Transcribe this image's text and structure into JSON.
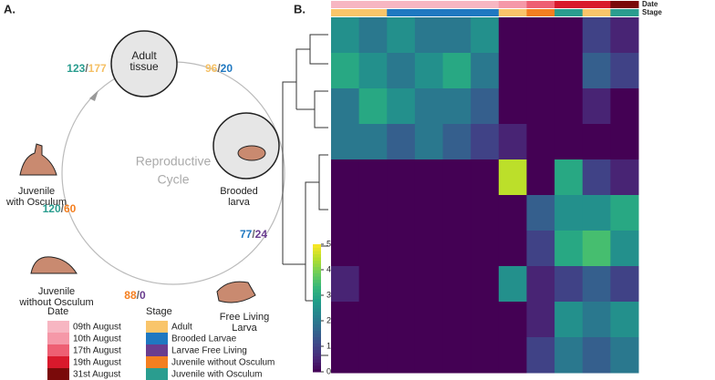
{
  "diagram": {
    "panel_a": "A.",
    "panel_b": "B.",
    "center_label": [
      "Reproductive",
      "Cycle"
    ],
    "stages": [
      {
        "label": [
          "Adult",
          "tissue"
        ]
      },
      {
        "label": [
          "Brooded",
          "larva"
        ]
      },
      {
        "label": [
          "Free Living",
          "Larva"
        ]
      },
      {
        "label": [
          "Juvenile",
          "without Osculum"
        ]
      },
      {
        "label": [
          "Juvenile",
          "with Osculum"
        ]
      }
    ],
    "counts": [
      {
        "a": "123",
        "a_color": "#2a9d8f",
        "b": "177",
        "b_color": "#f5c065"
      },
      {
        "a": "96",
        "a_color": "#f5c065",
        "b": "20",
        "b_color": "#1f78c1"
      },
      {
        "a": "77",
        "a_color": "#1f78c1",
        "b": "24",
        "b_color": "#6a3d8f"
      },
      {
        "a": "88",
        "a_color": "#f47f20",
        "b": "0",
        "b_color": "#6a3d8f"
      },
      {
        "a": "120",
        "a_color": "#2a9d8f",
        "b": "60",
        "b_color": "#f47f20"
      }
    ],
    "legend_date": {
      "title": "Date",
      "items": [
        {
          "label": "09th August",
          "color": "#f7b6c2"
        },
        {
          "label": "10th August",
          "color": "#f598a8"
        },
        {
          "label": "17th August",
          "color": "#ee5f73"
        },
        {
          "label": "19th August",
          "color": "#d9192c"
        },
        {
          "label": "31st August",
          "color": "#7a0a0a"
        }
      ]
    },
    "legend_stage": {
      "title": "Stage",
      "items": [
        {
          "label": "Adult",
          "color": "#f9c56a"
        },
        {
          "label": "Brooded Larvae",
          "color": "#1f78c1"
        },
        {
          "label": "Larvae Free Living",
          "color": "#6a3d8f"
        },
        {
          "label": "Juvenile without Osculum",
          "color": "#f47f20"
        },
        {
          "label": "Juvenile with Osculum",
          "color": "#2a9d8f"
        }
      ]
    }
  },
  "chart_data": {
    "type": "heatmap",
    "annotation_labels": [
      "Date",
      "Stage"
    ],
    "date_colors": [
      "#f7b6c2",
      "#f7b6c2",
      "#f7b6c2",
      "#f7b6c2",
      "#f7b6c2",
      "#f7b6c2",
      "#f598a8",
      "#ee5f73",
      "#d9192c",
      "#d9192c",
      "#7a0a0a"
    ],
    "stage_colors": [
      "#f9c56a",
      "#f9c56a",
      "#1f78c1",
      "#1f78c1",
      "#1f78c1",
      "#1f78c1",
      "#f9c56a",
      "#f47f20",
      "#2a9d8f",
      "#f9c56a",
      "#2a9d8f"
    ],
    "values": [
      [
        2.5,
        2,
        2.5,
        2,
        2,
        2.5,
        0,
        0,
        0,
        1,
        0.5
      ],
      [
        3,
        2.5,
        2,
        2.5,
        3,
        2,
        0,
        0,
        0,
        1.5,
        1
      ],
      [
        2,
        3,
        2.5,
        2,
        2,
        1.5,
        0,
        0,
        0,
        0.5,
        0
      ],
      [
        2,
        2,
        1.5,
        2,
        1.5,
        1,
        0.5,
        0,
        0,
        0,
        0
      ],
      [
        0,
        0,
        0,
        0,
        0,
        0,
        4.5,
        0,
        3,
        1,
        0.5
      ],
      [
        0,
        0,
        0,
        0,
        0,
        0,
        0,
        1.5,
        2.5,
        2.5,
        3
      ],
      [
        0,
        0,
        0,
        0,
        0,
        0,
        0,
        1,
        3,
        3.5,
        2.5
      ],
      [
        0.5,
        0,
        0,
        0,
        0,
        0,
        2.5,
        0.5,
        1,
        1.5,
        1
      ],
      [
        0,
        0,
        0,
        0,
        0,
        0,
        0,
        0.5,
        2.5,
        2,
        2.5
      ],
      [
        0,
        0,
        0,
        0,
        0,
        0,
        0,
        1,
        2,
        1.5,
        2
      ]
    ],
    "zlim": [
      0,
      5
    ],
    "zticks": [
      0,
      1,
      2,
      3,
      4,
      5
    ]
  }
}
